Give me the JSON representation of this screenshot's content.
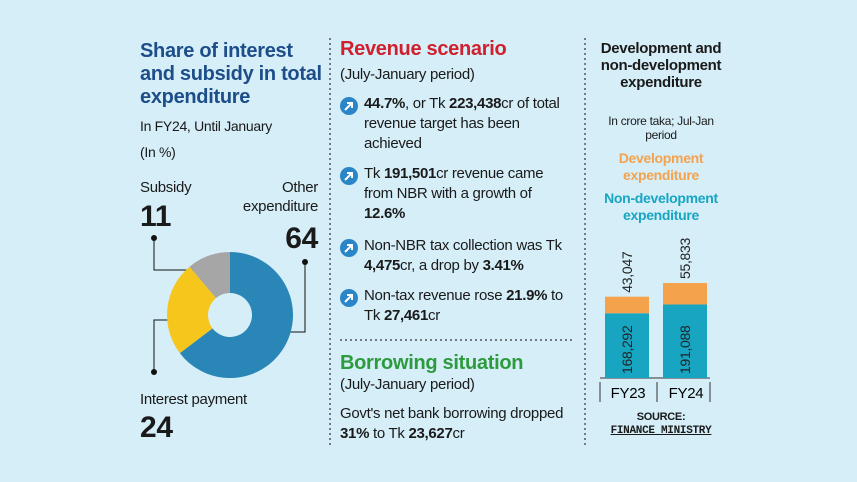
{
  "chart_data": [
    {
      "type": "pie",
      "title": "Share of interest and subsidy in total expenditure",
      "subtitle": "In FY24, Until January",
      "unit": "(In %)",
      "categories": [
        "Subsidy",
        "Other expenditure",
        "Interest payment"
      ],
      "values": [
        11,
        64,
        24
      ],
      "colors": [
        "#a6a6a6",
        "#2b86b8",
        "#f6c61c"
      ],
      "donut": true
    },
    {
      "type": "bar",
      "stacked": true,
      "title": "Development and non-development expenditure",
      "subtitle": "In crore taka; Jul-Jan period",
      "categories": [
        "FY23",
        "FY24"
      ],
      "series": [
        {
          "name": "Non-development expenditure",
          "color": "#17a5c2",
          "values": [
            168292,
            191088
          ],
          "value_labels": [
            "168,292",
            "191,088"
          ]
        },
        {
          "name": "Development expenditure",
          "color": "#f5a24c",
          "values": [
            43047,
            55833
          ],
          "value_labels": [
            "43,047",
            "55,833"
          ]
        }
      ],
      "source": {
        "label": "SOURCE:",
        "name": "FINANCE MINISTRY"
      }
    }
  ],
  "revenue": {
    "title": "Revenue scenario",
    "period": "(July-January period)",
    "items": [
      [
        {
          "text": "44.7%",
          "bold": true
        },
        {
          "text": ", or Tk "
        },
        {
          "text": "223,438",
          "bold": true
        },
        {
          "text": "cr of total revenue target has been achieved"
        }
      ],
      [
        {
          "text": "Tk "
        },
        {
          "text": "191,501",
          "bold": true
        },
        {
          "text": "cr revenue came from NBR with a growth of "
        },
        {
          "text": "12.6%",
          "bold": true
        }
      ],
      [
        {
          "text": "Non-NBR tax collection was Tk "
        },
        {
          "text": "4,475",
          "bold": true
        },
        {
          "text": "cr, a drop by "
        },
        {
          "text": "3.41%",
          "bold": true
        }
      ],
      [
        {
          "text": "Non-tax revenue rose "
        },
        {
          "text": "21.9%",
          "bold": true
        },
        {
          "text": " to Tk "
        },
        {
          "text": "27,461",
          "bold": true
        },
        {
          "text": "cr"
        }
      ]
    ]
  },
  "borrowing": {
    "title": "Borrowing situation",
    "period": "(July-January period)",
    "text": [
      {
        "text": "Govt's net bank borrowing dropped "
      },
      {
        "text": "31%",
        "bold": true
      },
      {
        "text": " to Tk "
      },
      {
        "text": "23,627",
        "bold": true
      },
      {
        "text": "cr"
      }
    ]
  }
}
